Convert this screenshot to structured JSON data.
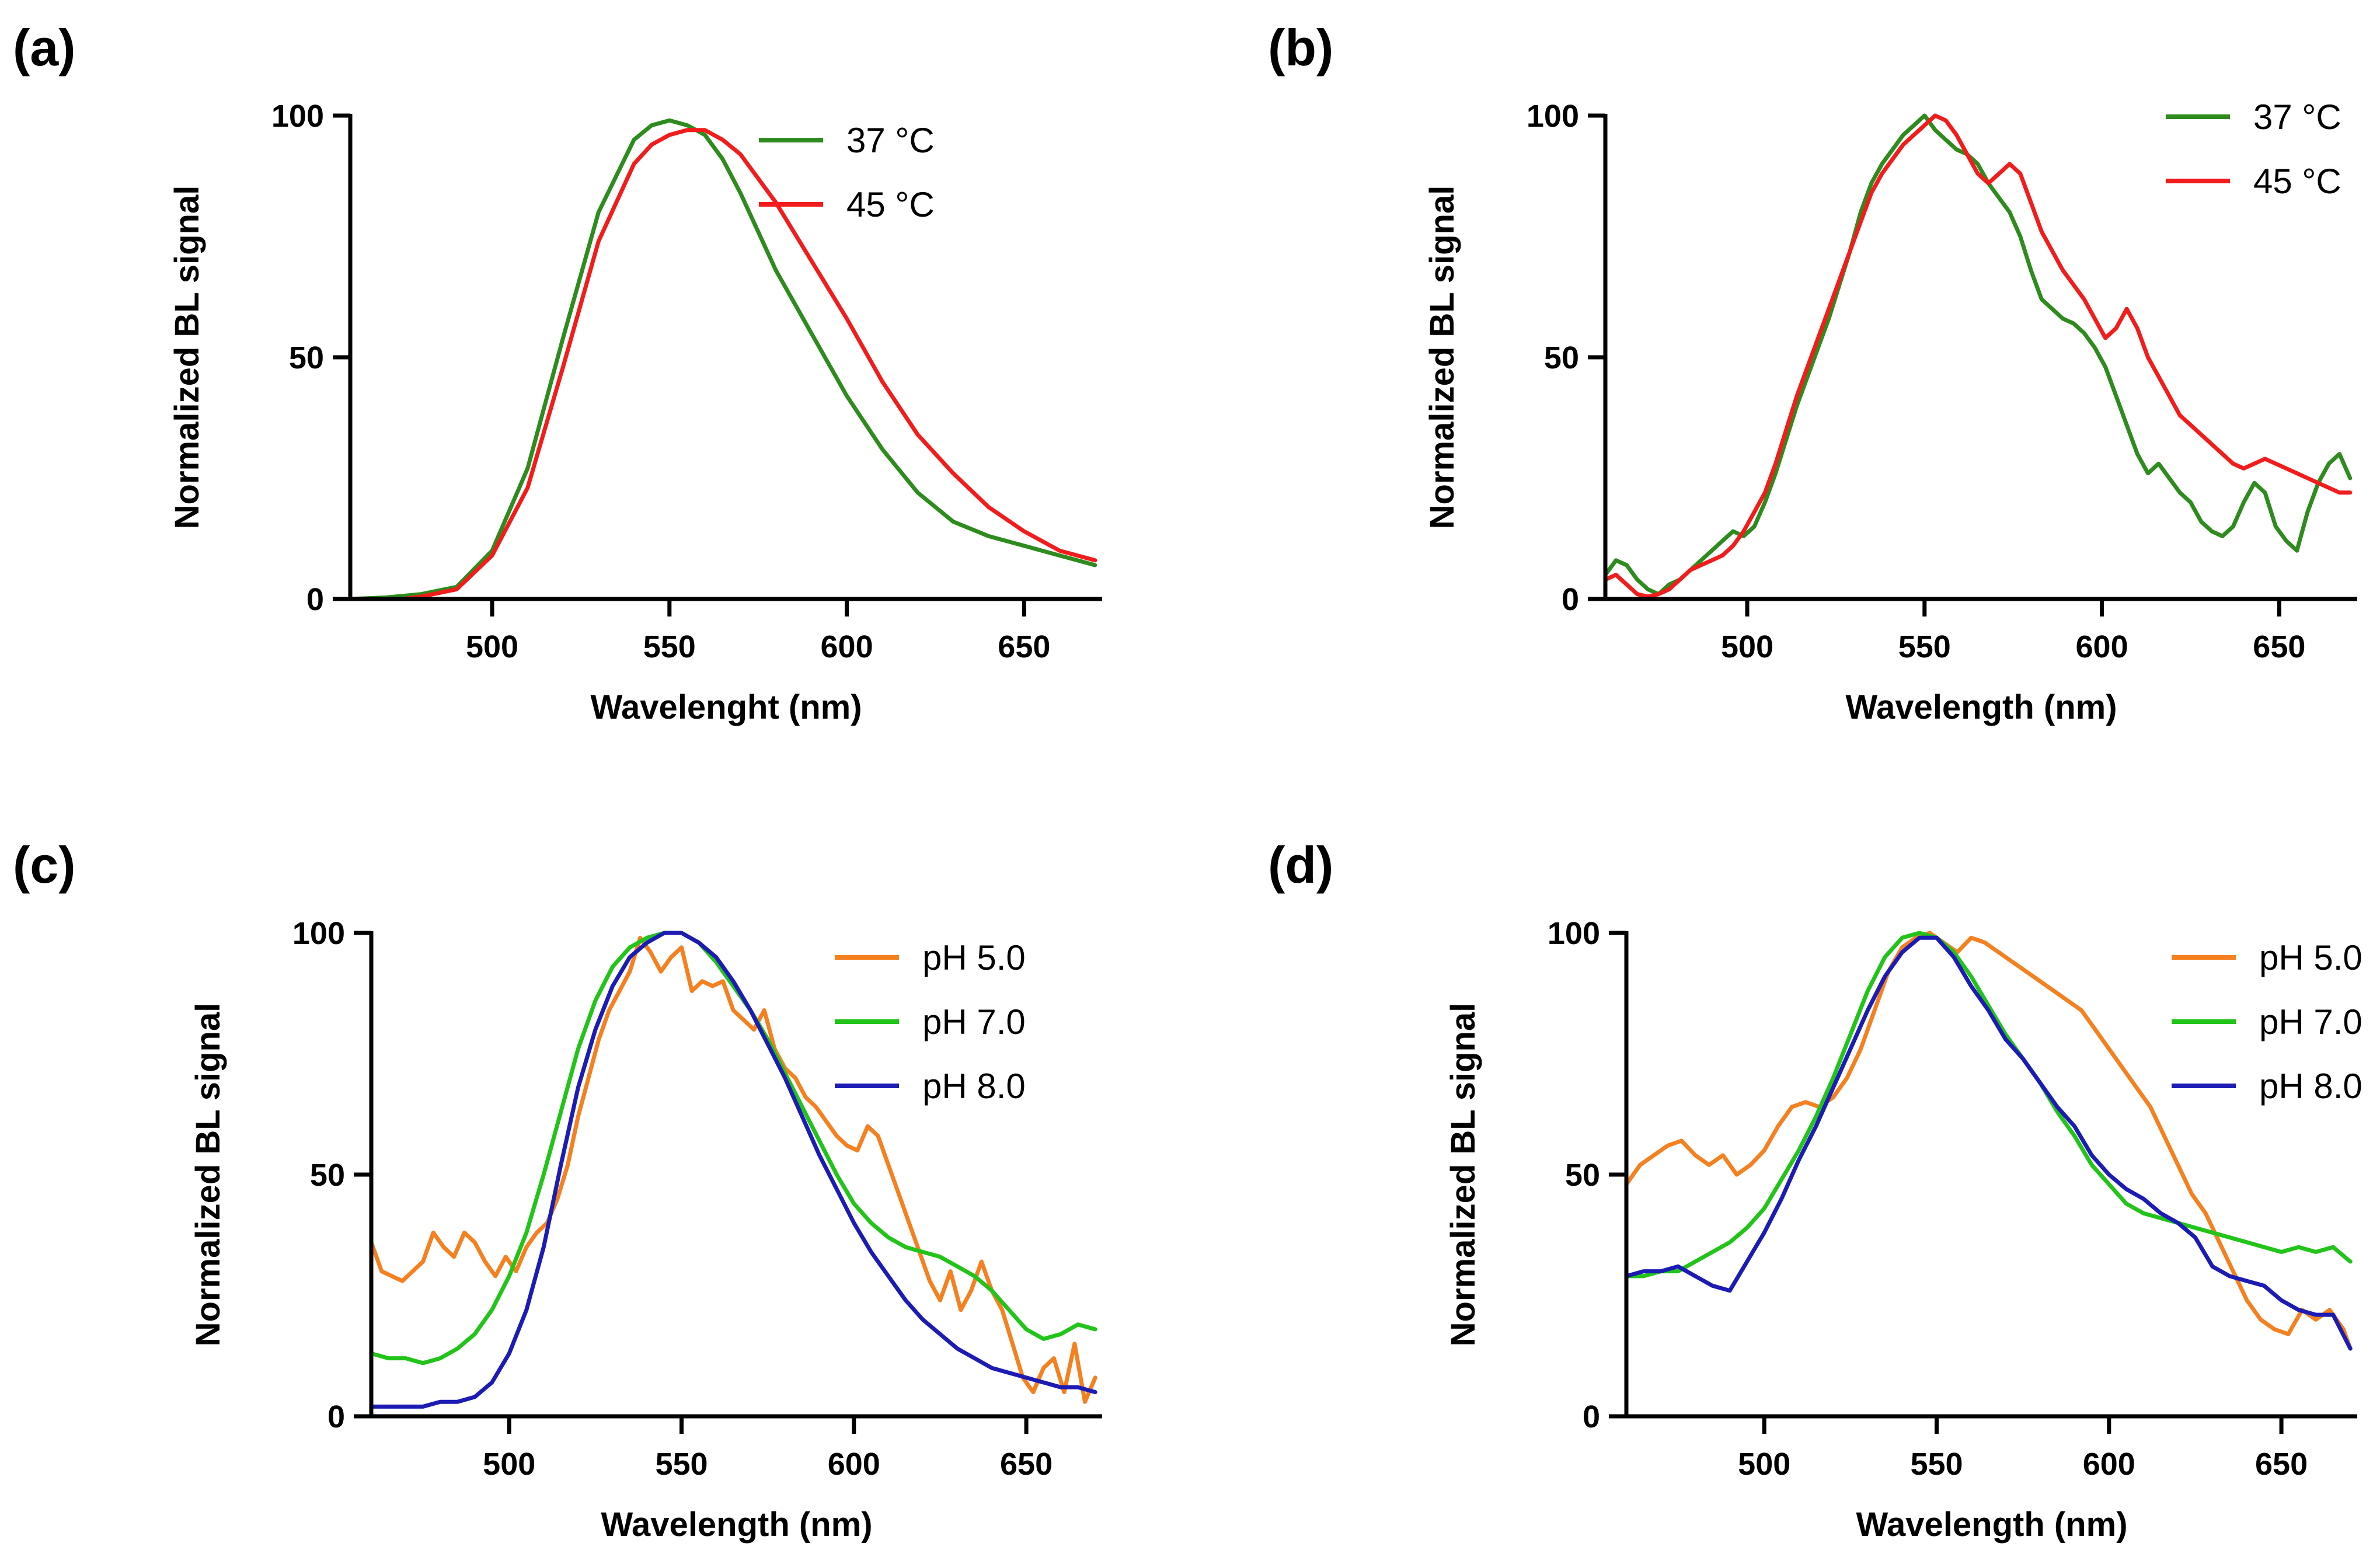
{
  "figure": {
    "colors": {
      "green_dark": "#2E8B1E",
      "red": "#F21C1C",
      "orange": "#F58020",
      "green_light": "#22C41A",
      "blue": "#1C1CB4"
    }
  },
  "chart_data": [
    {
      "id": "a",
      "type": "line",
      "panel_label": "(a)",
      "xlabel": "Wavelenght (nm)",
      "ylabel": "Normalized BL signal",
      "xlim": [
        460,
        672
      ],
      "ylim": [
        0,
        100
      ],
      "xticks": [
        500,
        550,
        600,
        650
      ],
      "yticks": [
        0,
        50,
        100
      ],
      "legend_position": "top-right",
      "series": [
        {
          "name": "37 °C",
          "color": "#2E8B1E",
          "x": [
            460,
            470,
            480,
            490,
            500,
            510,
            520,
            530,
            540,
            545,
            550,
            555,
            560,
            565,
            570,
            580,
            590,
            600,
            610,
            620,
            630,
            640,
            650,
            660,
            670
          ],
          "y": [
            0,
            0.3,
            1,
            2.5,
            10,
            27,
            54,
            80,
            95,
            98,
            99,
            98,
            96,
            91,
            84,
            68,
            55,
            42,
            31,
            22,
            16,
            13,
            11,
            9,
            7
          ]
        },
        {
          "name": "45 °C",
          "color": "#F21C1C",
          "x": [
            475,
            480,
            490,
            500,
            510,
            520,
            530,
            540,
            545,
            550,
            555,
            560,
            565,
            570,
            580,
            590,
            600,
            610,
            620,
            630,
            640,
            650,
            660,
            670
          ],
          "y": [
            0,
            0.5,
            2,
            9,
            23,
            48,
            74,
            90,
            94,
            96,
            97,
            97,
            95,
            92,
            82,
            70,
            58,
            45,
            34,
            26,
            19,
            14,
            10,
            8
          ]
        }
      ]
    },
    {
      "id": "b",
      "type": "line",
      "panel_label": "(b)",
      "xlabel": "Wavelength (nm)",
      "ylabel": "Normalized BL signal",
      "xlim": [
        460,
        672
      ],
      "ylim": [
        0,
        100
      ],
      "xticks": [
        500,
        550,
        600,
        650
      ],
      "yticks": [
        0,
        50,
        100
      ],
      "legend_position": "top-right",
      "series": [
        {
          "name": "37 °C",
          "color": "#2E8B1E",
          "x": [
            460,
            463,
            466,
            469,
            472,
            475,
            478,
            481,
            484,
            487,
            490,
            493,
            496,
            499,
            502,
            505,
            508,
            511,
            514,
            517,
            520,
            523,
            526,
            529,
            532,
            535,
            538,
            541,
            544,
            547,
            550,
            553,
            556,
            559,
            562,
            565,
            568,
            571,
            574,
            577,
            580,
            583,
            586,
            589,
            592,
            595,
            598,
            601,
            604,
            607,
            610,
            613,
            616,
            619,
            622,
            625,
            628,
            631,
            634,
            637,
            640,
            643,
            646,
            649,
            652,
            655,
            658,
            661,
            664,
            667,
            670
          ],
          "y": [
            5,
            8,
            7,
            4,
            2,
            1,
            3,
            4,
            6,
            8,
            10,
            12,
            14,
            13,
            15,
            20,
            26,
            33,
            40,
            46,
            52,
            58,
            65,
            72,
            80,
            86,
            90,
            93,
            96,
            98,
            100,
            97,
            95,
            93,
            92,
            90,
            86,
            83,
            80,
            75,
            68,
            62,
            60,
            58,
            57,
            55,
            52,
            48,
            42,
            36,
            30,
            26,
            28,
            25,
            22,
            20,
            16,
            14,
            13,
            15,
            20,
            24,
            22,
            15,
            12,
            10,
            18,
            24,
            28,
            30,
            25
          ]
        },
        {
          "name": "45 °C",
          "color": "#F21C1C",
          "x": [
            460,
            463,
            466,
            469,
            472,
            475,
            478,
            481,
            484,
            487,
            490,
            493,
            496,
            499,
            502,
            505,
            508,
            511,
            514,
            517,
            520,
            523,
            526,
            529,
            532,
            535,
            538,
            541,
            544,
            547,
            550,
            553,
            556,
            559,
            562,
            565,
            568,
            571,
            574,
            577,
            580,
            583,
            586,
            589,
            592,
            595,
            598,
            601,
            604,
            607,
            610,
            613,
            616,
            619,
            622,
            625,
            628,
            631,
            634,
            637,
            640,
            643,
            646,
            649,
            652,
            655,
            658,
            661,
            664,
            667,
            670
          ],
          "y": [
            4,
            5,
            3,
            1,
            0.5,
            1,
            2,
            4,
            6,
            7,
            8,
            9,
            11,
            14,
            18,
            22,
            28,
            35,
            42,
            48,
            54,
            60,
            66,
            72,
            78,
            84,
            88,
            91,
            94,
            96,
            98,
            100,
            99,
            96,
            92,
            88,
            86,
            88,
            90,
            88,
            82,
            76,
            72,
            68,
            65,
            62,
            58,
            54,
            56,
            60,
            56,
            50,
            46,
            42,
            38,
            36,
            34,
            32,
            30,
            28,
            27,
            28,
            29,
            28,
            27,
            26,
            25,
            24,
            23,
            22,
            22
          ]
        }
      ]
    },
    {
      "id": "c",
      "type": "line",
      "panel_label": "(c)",
      "xlabel": "Wavelength (nm)",
      "ylabel": "Normalized BL signal",
      "xlim": [
        460,
        672
      ],
      "ylim": [
        0,
        100
      ],
      "xticks": [
        500,
        550,
        600,
        650
      ],
      "yticks": [
        0,
        50,
        100
      ],
      "legend_position": "top-right",
      "series": [
        {
          "name": "pH 5.0",
          "color": "#F58020",
          "x": [
            460,
            463,
            466,
            469,
            472,
            475,
            478,
            481,
            484,
            487,
            490,
            493,
            496,
            499,
            502,
            505,
            508,
            511,
            514,
            517,
            520,
            523,
            526,
            529,
            532,
            535,
            538,
            541,
            544,
            547,
            550,
            553,
            556,
            559,
            562,
            565,
            568,
            571,
            574,
            577,
            580,
            583,
            586,
            589,
            592,
            595,
            598,
            601,
            604,
            607,
            610,
            613,
            616,
            619,
            622,
            625,
            628,
            631,
            634,
            637,
            640,
            643,
            646,
            649,
            652,
            655,
            658,
            661,
            664,
            667,
            670
          ],
          "y": [
            36,
            30,
            29,
            28,
            30,
            32,
            38,
            35,
            33,
            38,
            36,
            32,
            29,
            33,
            30,
            35,
            38,
            40,
            45,
            52,
            62,
            70,
            78,
            84,
            88,
            92,
            99,
            96,
            92,
            95,
            97,
            88,
            90,
            89,
            90,
            84,
            82,
            80,
            84,
            76,
            72,
            70,
            66,
            64,
            61,
            58,
            56,
            55,
            60,
            58,
            52,
            46,
            40,
            34,
            28,
            24,
            30,
            22,
            26,
            32,
            26,
            22,
            15,
            8,
            5,
            10,
            12,
            5,
            15,
            3,
            8
          ]
        },
        {
          "name": "pH 7.0",
          "color": "#22C41A",
          "x": [
            460,
            465,
            470,
            475,
            480,
            485,
            490,
            495,
            500,
            505,
            510,
            515,
            520,
            525,
            530,
            535,
            540,
            545,
            550,
            555,
            560,
            565,
            570,
            575,
            580,
            585,
            590,
            595,
            600,
            605,
            610,
            615,
            620,
            625,
            630,
            635,
            640,
            645,
            650,
            655,
            660,
            665,
            670
          ],
          "y": [
            13,
            12,
            12,
            11,
            12,
            14,
            17,
            22,
            29,
            38,
            50,
            63,
            76,
            86,
            93,
            97,
            99,
            100,
            100,
            98,
            94,
            89,
            84,
            78,
            71,
            64,
            57,
            50,
            44,
            40,
            37,
            35,
            34,
            33,
            31,
            29,
            26,
            22,
            18,
            16,
            17,
            19,
            18
          ]
        },
        {
          "name": "pH 8.0",
          "color": "#1C1CB4",
          "x": [
            460,
            465,
            470,
            475,
            480,
            485,
            490,
            495,
            500,
            505,
            510,
            515,
            520,
            525,
            530,
            535,
            540,
            545,
            550,
            555,
            560,
            565,
            570,
            575,
            580,
            585,
            590,
            595,
            600,
            605,
            610,
            615,
            620,
            625,
            630,
            635,
            640,
            645,
            650,
            655,
            660,
            665,
            670
          ],
          "y": [
            2,
            2,
            2,
            2,
            3,
            3,
            4,
            7,
            13,
            22,
            35,
            52,
            68,
            80,
            89,
            95,
            98,
            100,
            100,
            98,
            95,
            90,
            84,
            77,
            70,
            62,
            54,
            47,
            40,
            34,
            29,
            24,
            20,
            17,
            14,
            12,
            10,
            9,
            8,
            7,
            6,
            6,
            5
          ]
        }
      ]
    },
    {
      "id": "d",
      "type": "line",
      "panel_label": "(d)",
      "xlabel": "Wavelength (nm)",
      "ylabel": "Normalized BL signal",
      "xlim": [
        460,
        672
      ],
      "ylim": [
        0,
        100
      ],
      "xticks": [
        500,
        550,
        600,
        650
      ],
      "yticks": [
        0,
        50,
        100
      ],
      "legend_position": "top-right",
      "series": [
        {
          "name": "pH 5.0",
          "color": "#F58020",
          "x": [
            460,
            464,
            468,
            472,
            476,
            480,
            484,
            488,
            492,
            496,
            500,
            504,
            508,
            512,
            516,
            520,
            524,
            528,
            532,
            536,
            540,
            544,
            548,
            552,
            556,
            560,
            564,
            568,
            572,
            576,
            580,
            584,
            588,
            592,
            596,
            600,
            604,
            608,
            612,
            616,
            620,
            624,
            628,
            632,
            636,
            640,
            644,
            648,
            652,
            656,
            660,
            664,
            668,
            670
          ],
          "y": [
            48,
            52,
            54,
            56,
            57,
            54,
            52,
            54,
            50,
            52,
            55,
            60,
            64,
            65,
            64,
            66,
            70,
            76,
            84,
            92,
            97,
            99,
            100,
            98,
            96,
            99,
            98,
            96,
            94,
            92,
            90,
            88,
            86,
            84,
            80,
            76,
            72,
            68,
            64,
            58,
            52,
            46,
            42,
            36,
            30,
            24,
            20,
            18,
            17,
            22,
            20,
            22,
            18,
            14
          ]
        },
        {
          "name": "pH 7.0",
          "color": "#22C41A",
          "x": [
            460,
            465,
            470,
            475,
            480,
            485,
            490,
            495,
            500,
            505,
            510,
            515,
            520,
            525,
            530,
            535,
            540,
            545,
            550,
            555,
            560,
            565,
            570,
            575,
            580,
            585,
            590,
            595,
            600,
            605,
            610,
            615,
            620,
            625,
            630,
            635,
            640,
            645,
            650,
            655,
            660,
            665,
            670
          ],
          "y": [
            29,
            29,
            30,
            30,
            32,
            34,
            36,
            39,
            43,
            49,
            55,
            62,
            70,
            79,
            88,
            95,
            99,
            100,
            99,
            96,
            91,
            85,
            79,
            74,
            69,
            63,
            58,
            52,
            48,
            44,
            42,
            41,
            40,
            39,
            38,
            37,
            36,
            35,
            34,
            35,
            34,
            35,
            32
          ]
        },
        {
          "name": "pH 8.0",
          "color": "#1C1CB4",
          "x": [
            460,
            465,
            470,
            475,
            480,
            485,
            490,
            495,
            500,
            505,
            510,
            515,
            520,
            525,
            530,
            535,
            540,
            545,
            550,
            555,
            560,
            565,
            570,
            575,
            580,
            585,
            590,
            595,
            600,
            605,
            610,
            615,
            620,
            625,
            630,
            635,
            640,
            645,
            650,
            655,
            660,
            665,
            670
          ],
          "y": [
            29,
            30,
            30,
            31,
            29,
            27,
            26,
            32,
            38,
            45,
            53,
            60,
            68,
            76,
            84,
            91,
            96,
            99,
            99,
            95,
            89,
            84,
            78,
            74,
            69,
            64,
            60,
            54,
            50,
            47,
            45,
            42,
            40,
            37,
            31,
            29,
            28,
            27,
            24,
            22,
            21,
            21,
            14
          ]
        }
      ]
    }
  ]
}
